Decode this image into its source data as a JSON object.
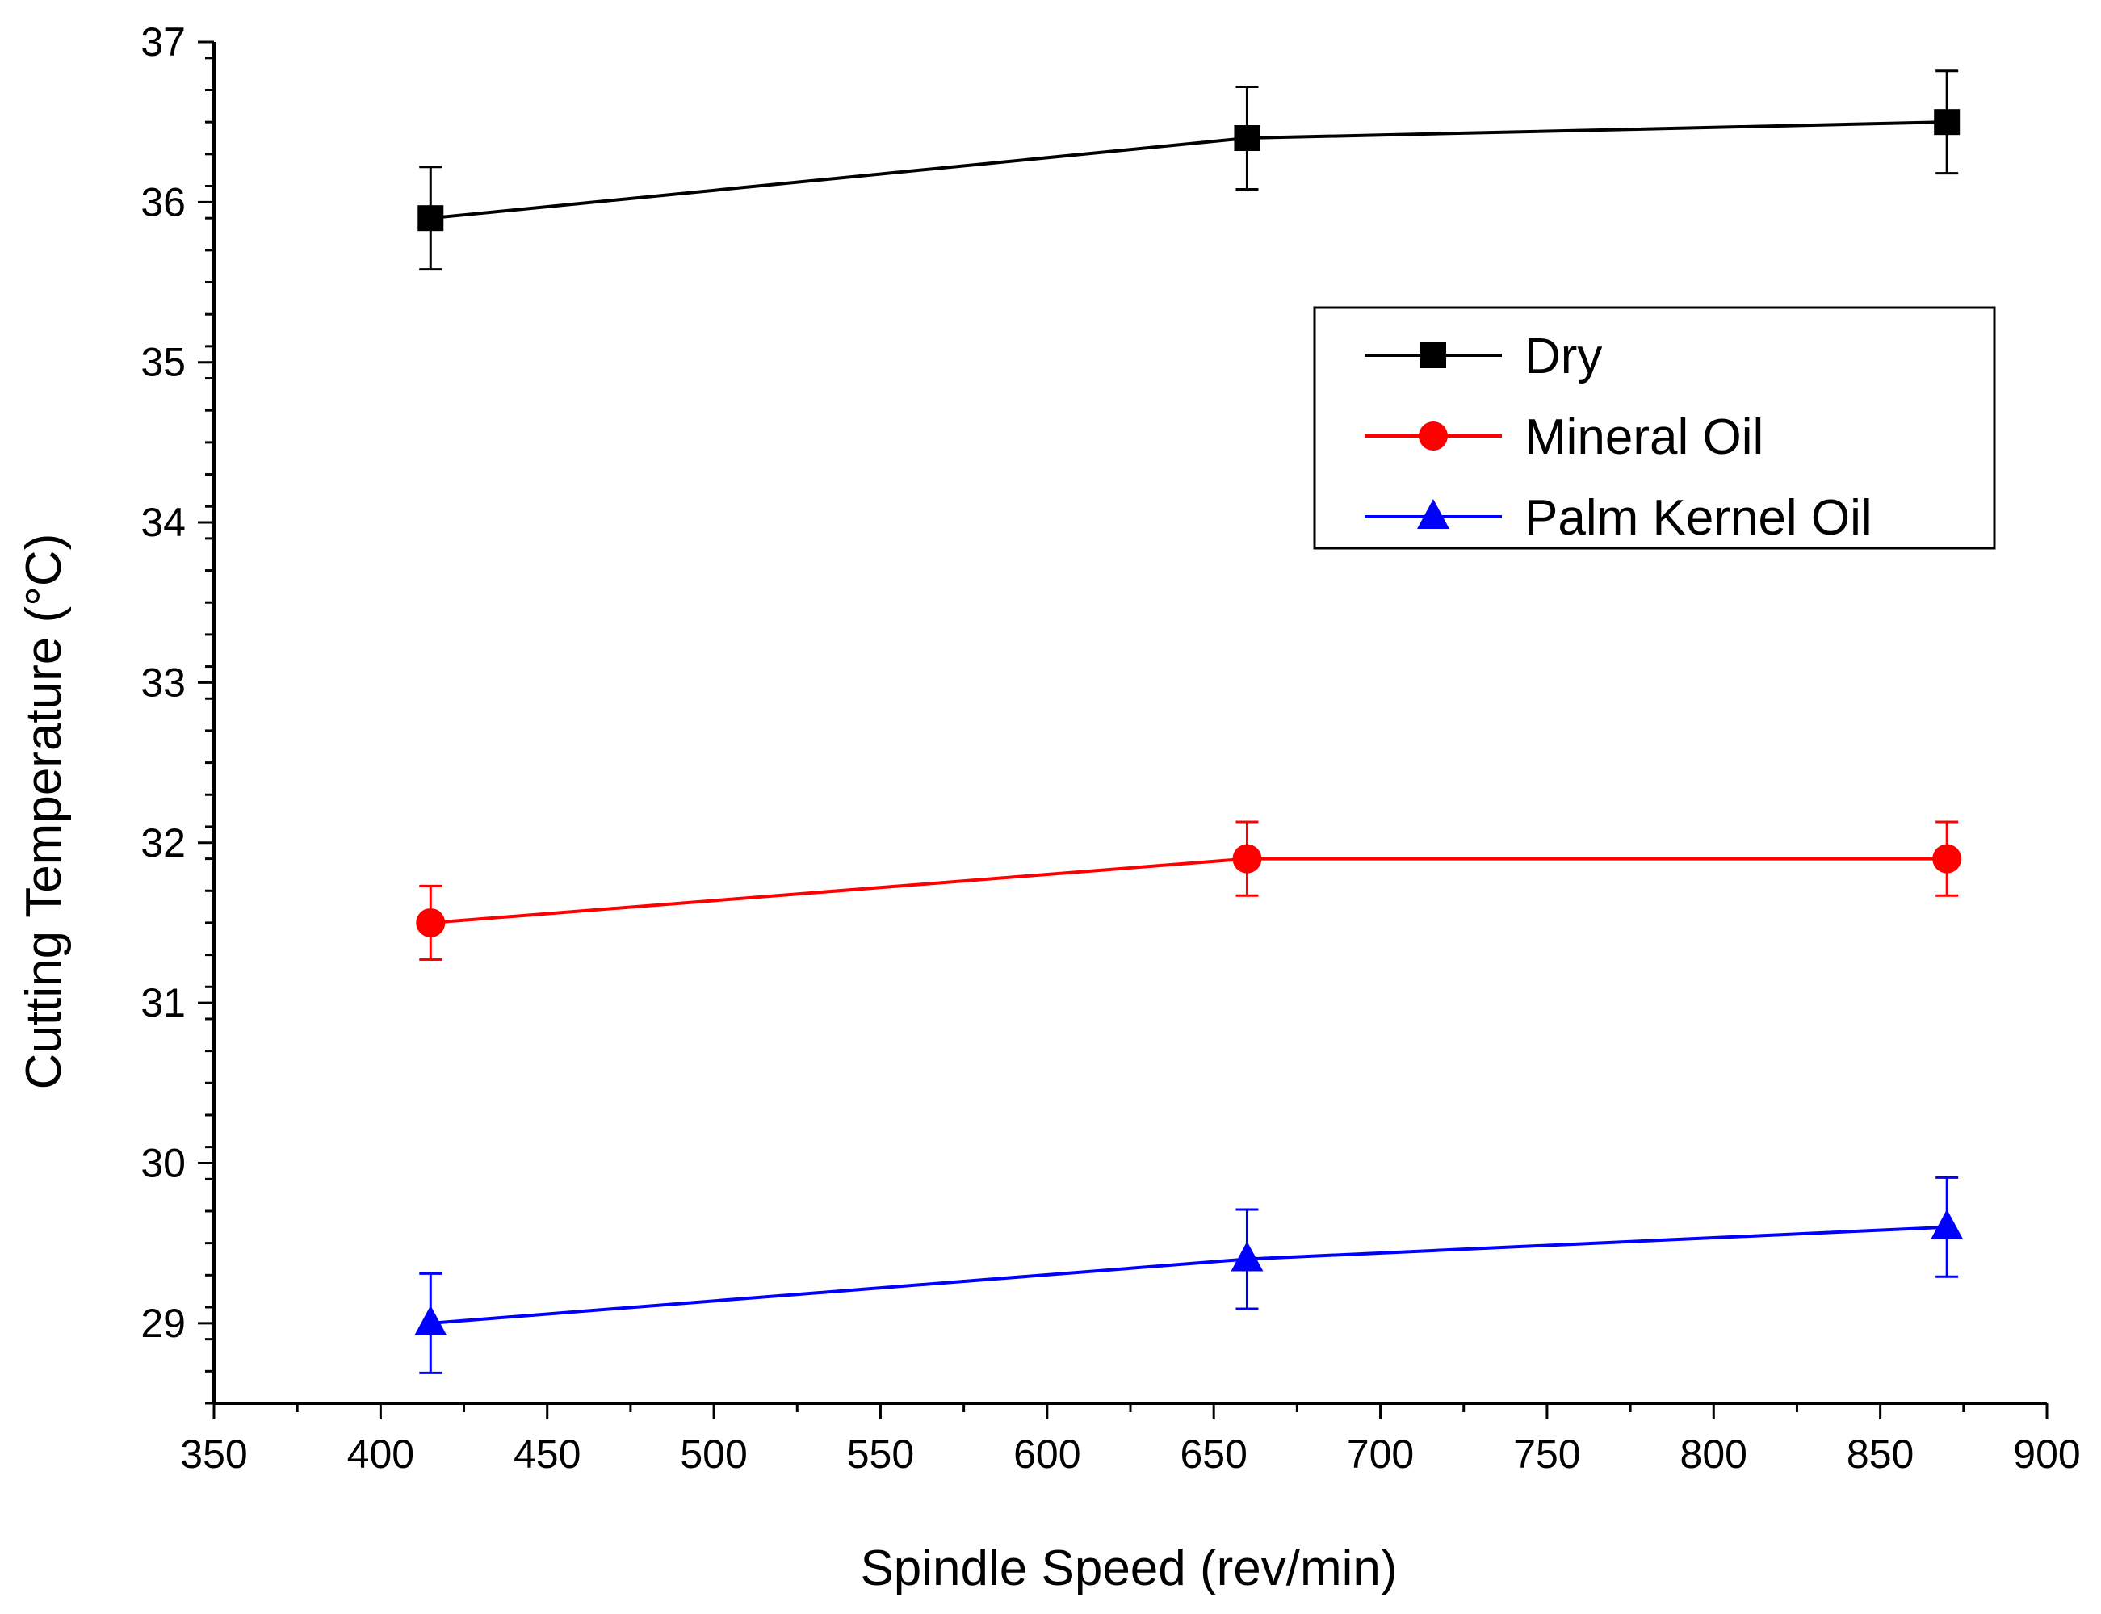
{
  "chart_data": {
    "type": "line",
    "title": "",
    "xlabel": "Spindle Speed (rev/min)",
    "ylabel": "Cutting Temperature (°C)",
    "xlim": [
      350,
      900
    ],
    "ylim": [
      28.5,
      37
    ],
    "xticks": [
      350,
      400,
      450,
      500,
      550,
      600,
      650,
      700,
      750,
      800,
      850,
      900
    ],
    "yticks": [
      29,
      30,
      31,
      32,
      33,
      34,
      35,
      36,
      37
    ],
    "x": [
      415,
      660,
      870
    ],
    "grid": false,
    "legend_position": "top-right",
    "series": [
      {
        "name": "Dry",
        "color": "#000000",
        "marker": "square",
        "values": [
          35.9,
          36.4,
          36.5
        ],
        "errors": [
          0.32,
          0.32,
          0.32
        ]
      },
      {
        "name": "Mineral Oil",
        "color": "#ff0000",
        "marker": "circle",
        "values": [
          31.5,
          31.9,
          31.9
        ],
        "errors": [
          0.23,
          0.23,
          0.23
        ]
      },
      {
        "name": "Palm Kernel Oil",
        "color": "#0000ff",
        "marker": "triangle",
        "values": [
          29.0,
          29.4,
          29.6
        ],
        "errors": [
          0.31,
          0.31,
          0.31
        ]
      }
    ]
  }
}
